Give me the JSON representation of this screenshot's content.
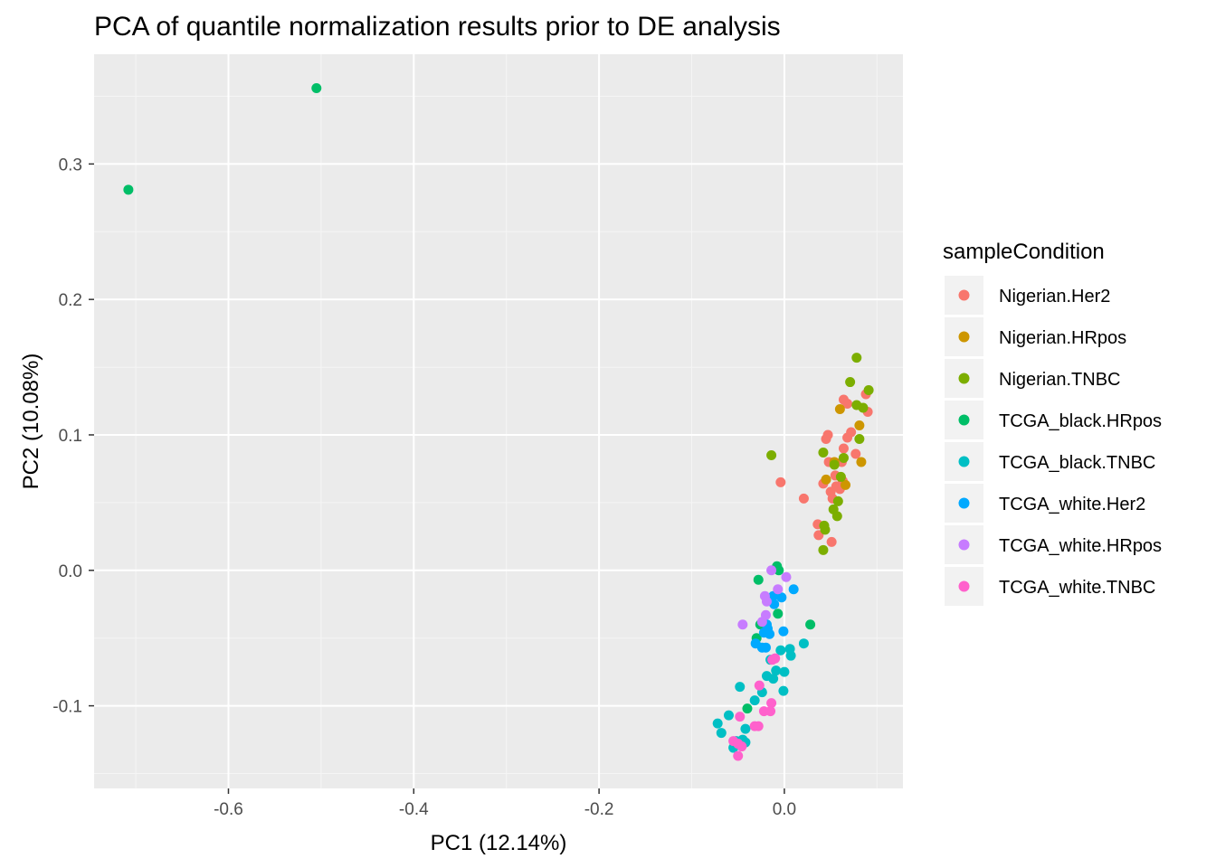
{
  "chart_data": {
    "type": "scatter",
    "title": "PCA of quantile normalization results prior to DE analysis",
    "xlabel": "PC1 (12.14%)",
    "ylabel": "PC2 (10.08%)",
    "xlim": [
      -0.745,
      0.128
    ],
    "ylim": [
      -0.161,
      0.381
    ],
    "x_ticks": [
      -0.6,
      -0.4,
      -0.2,
      0.0
    ],
    "x_tick_labels": [
      "-0.6",
      "-0.4",
      "-0.2",
      "0.0"
    ],
    "y_ticks": [
      -0.1,
      0.0,
      0.1,
      0.2,
      0.3
    ],
    "y_tick_labels": [
      "-0.1",
      "0.0",
      "0.1",
      "0.2",
      "0.3"
    ],
    "grid": true,
    "legend_position": "right",
    "legend_title": "sampleCondition",
    "series": [
      {
        "name": "Nigerian.Her2",
        "color": "#F8766D",
        "points": [
          [
            0.045,
            0.097
          ],
          [
            0.047,
            0.1
          ],
          [
            0.055,
            0.07
          ],
          [
            0.064,
            0.126
          ],
          [
            0.068,
            0.123
          ],
          [
            0.072,
            0.102
          ],
          [
            0.062,
            0.08
          ],
          [
            0.064,
            0.09
          ],
          [
            0.068,
            0.098
          ],
          [
            0.042,
            0.064
          ],
          [
            0.05,
            0.058
          ],
          [
            0.056,
            0.062
          ],
          [
            0.06,
            0.06
          ],
          [
            0.063,
            0.066
          ],
          [
            0.052,
            0.053
          ],
          [
            0.088,
            0.13
          ],
          [
            0.09,
            0.117
          ],
          [
            -0.004,
            0.065
          ],
          [
            0.021,
            0.053
          ],
          [
            0.036,
            0.034
          ],
          [
            0.037,
            0.026
          ],
          [
            0.051,
            0.021
          ],
          [
            0.077,
            0.086
          ],
          [
            0.048,
            0.08
          ]
        ]
      },
      {
        "name": "Nigerian.HRpos",
        "color": "#CD9600",
        "points": [
          [
            0.06,
            0.119
          ],
          [
            0.081,
            0.107
          ],
          [
            0.083,
            0.08
          ],
          [
            0.045,
            0.067
          ],
          [
            0.054,
            0.08
          ],
          [
            0.066,
            0.063
          ]
        ]
      },
      {
        "name": "Nigerian.TNBC",
        "color": "#7CAE00",
        "points": [
          [
            0.078,
            0.157
          ],
          [
            0.071,
            0.139
          ],
          [
            0.091,
            0.133
          ],
          [
            0.078,
            0.122
          ],
          [
            0.085,
            0.12
          ],
          [
            0.081,
            0.097
          ],
          [
            0.042,
            0.087
          ],
          [
            0.064,
            0.083
          ],
          [
            0.054,
            0.078
          ],
          [
            0.061,
            0.069
          ],
          [
            0.058,
            0.051
          ],
          [
            0.053,
            0.045
          ],
          [
            0.057,
            0.04
          ],
          [
            0.043,
            0.033
          ],
          [
            0.044,
            0.03
          ],
          [
            0.042,
            0.015
          ],
          [
            -0.014,
            0.085
          ]
        ]
      },
      {
        "name": "TCGA_black.HRpos",
        "color": "#00BE67",
        "points": [
          [
            -0.708,
            0.281
          ],
          [
            -0.505,
            0.356
          ],
          [
            -0.028,
            -0.007
          ],
          [
            -0.008,
            0.003
          ],
          [
            -0.006,
            0.0
          ],
          [
            -0.007,
            -0.032
          ],
          [
            0.028,
            -0.04
          ],
          [
            -0.026,
            -0.04
          ],
          [
            -0.03,
            -0.05
          ],
          [
            -0.04,
            -0.102
          ]
        ]
      },
      {
        "name": "TCGA_black.TNBC",
        "color": "#00BFC4",
        "points": [
          [
            0.021,
            -0.054
          ],
          [
            0.006,
            -0.058
          ],
          [
            -0.004,
            -0.059
          ],
          [
            0.007,
            -0.063
          ],
          [
            -0.015,
            -0.066
          ],
          [
            -0.009,
            -0.074
          ],
          [
            0.0,
            -0.075
          ],
          [
            -0.019,
            -0.078
          ],
          [
            -0.012,
            -0.08
          ],
          [
            -0.001,
            -0.089
          ],
          [
            -0.024,
            -0.09
          ],
          [
            -0.048,
            -0.086
          ],
          [
            -0.032,
            -0.096
          ],
          [
            -0.06,
            -0.107
          ],
          [
            -0.072,
            -0.113
          ],
          [
            -0.042,
            -0.117
          ],
          [
            -0.068,
            -0.12
          ],
          [
            -0.052,
            -0.126
          ],
          [
            -0.045,
            -0.125
          ],
          [
            -0.042,
            -0.127
          ],
          [
            -0.055,
            -0.131
          ]
        ]
      },
      {
        "name": "TCGA_white.Her2",
        "color": "#00A9FF",
        "points": [
          [
            0.01,
            -0.014
          ],
          [
            -0.012,
            -0.019
          ],
          [
            -0.003,
            -0.02
          ],
          [
            -0.011,
            -0.025
          ],
          [
            -0.019,
            -0.04
          ],
          [
            -0.018,
            -0.043
          ],
          [
            -0.022,
            -0.046
          ],
          [
            -0.016,
            -0.047
          ],
          [
            -0.001,
            -0.045
          ],
          [
            -0.031,
            -0.054
          ],
          [
            -0.024,
            -0.057
          ],
          [
            -0.02,
            -0.057
          ]
        ]
      },
      {
        "name": "TCGA_white.HRpos",
        "color": "#C77CFF",
        "points": [
          [
            -0.014,
            0.0
          ],
          [
            0.002,
            -0.005
          ],
          [
            -0.021,
            -0.019
          ],
          [
            -0.007,
            -0.014
          ],
          [
            -0.019,
            -0.023
          ],
          [
            -0.02,
            -0.033
          ],
          [
            -0.024,
            -0.038
          ],
          [
            -0.045,
            -0.04
          ]
        ]
      },
      {
        "name": "TCGA_white.TNBC",
        "color": "#FF61CC",
        "points": [
          [
            -0.013,
            -0.066
          ],
          [
            -0.01,
            -0.065
          ],
          [
            -0.027,
            -0.085
          ],
          [
            -0.014,
            -0.098
          ],
          [
            -0.022,
            -0.104
          ],
          [
            -0.015,
            -0.104
          ],
          [
            -0.048,
            -0.108
          ],
          [
            -0.032,
            -0.115
          ],
          [
            -0.028,
            -0.115
          ],
          [
            -0.055,
            -0.126
          ],
          [
            -0.05,
            -0.128
          ],
          [
            -0.046,
            -0.13
          ],
          [
            -0.05,
            -0.137
          ]
        ]
      }
    ]
  }
}
